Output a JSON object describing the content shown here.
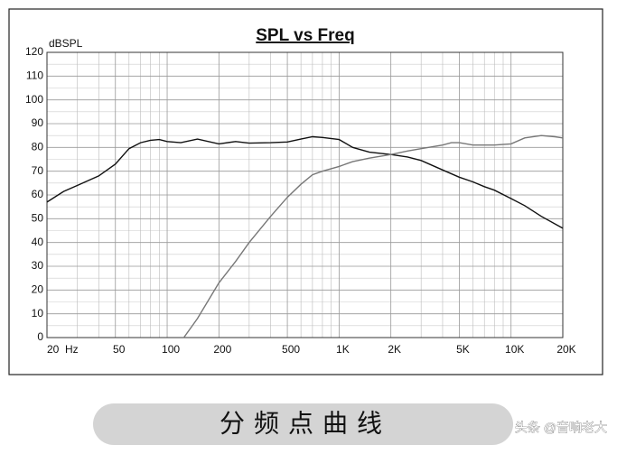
{
  "chart_data": {
    "type": "line",
    "title": "SPL vs Freq",
    "ylabel": "dBSPL",
    "xscale": "log",
    "grid": true,
    "xlim": [
      20,
      20000
    ],
    "ylim": [
      0,
      120
    ],
    "xticks": [
      {
        "value": 20,
        "label": "20  Hz"
      },
      50,
      100,
      200,
      500,
      {
        "value": 1000,
        "label": "1K"
      },
      {
        "value": 2000,
        "label": "2K"
      },
      {
        "value": 5000,
        "label": "5K"
      },
      {
        "value": 10000,
        "label": "10K"
      },
      {
        "value": 20000,
        "label": "20K"
      }
    ],
    "xminor": [
      30,
      40,
      60,
      70,
      80,
      90,
      300,
      400,
      600,
      700,
      800,
      900,
      3000,
      4000,
      6000,
      7000,
      8000,
      9000
    ],
    "yticks": [
      0,
      10,
      20,
      30,
      40,
      50,
      60,
      70,
      80,
      90,
      100,
      110,
      120
    ],
    "yminor": [
      5,
      15,
      25,
      35,
      45,
      55,
      65,
      75,
      85,
      95,
      105,
      115
    ],
    "series": [
      {
        "color": "#111111",
        "x": [
          20,
          25,
          30,
          40,
          50,
          60,
          70,
          80,
          90,
          100,
          120,
          150,
          200,
          250,
          300,
          400,
          500,
          600,
          700,
          800,
          1000,
          1200,
          1500,
          2000,
          2500,
          3000,
          4000,
          5000,
          6000,
          7000,
          8000,
          10000,
          12000,
          15000,
          20000
        ],
        "values": [
          57,
          61.5,
          64,
          68,
          73,
          79.5,
          82,
          83,
          83.3,
          82.5,
          82,
          83.5,
          81.5,
          82.5,
          81.8,
          82,
          82.3,
          83.5,
          84.5,
          84.2,
          83.3,
          80,
          78,
          77,
          76,
          74.5,
          70.5,
          67.5,
          65.5,
          63.5,
          62,
          58.5,
          55.5,
          51,
          46
        ]
      },
      {
        "color": "#777777",
        "x": [
          125,
          150,
          200,
          250,
          300,
          400,
          500,
          600,
          700,
          800,
          1000,
          1200,
          1500,
          2000,
          2500,
          3000,
          4000,
          4500,
          5000,
          6000,
          7000,
          8000,
          10000,
          12000,
          15000,
          18000,
          20000
        ],
        "values": [
          0,
          8,
          23,
          32,
          40,
          51,
          59,
          64.5,
          68.5,
          70,
          72,
          74,
          75.5,
          77,
          78.5,
          79.5,
          81,
          82,
          82,
          81,
          81,
          81,
          81.5,
          84,
          85,
          84.5,
          84
        ]
      }
    ]
  },
  "caption": "分频点曲线",
  "watermark": "头条 @音响老大"
}
